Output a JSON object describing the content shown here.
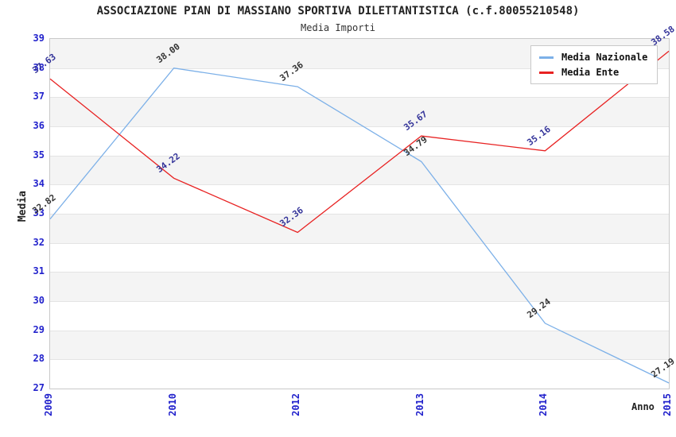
{
  "header": {
    "title": "ASSOCIAZIONE PIAN DI MASSIANO SPORTIVA DILETTANTISTICA (c.f.80055210548)",
    "subtitle": "Media Importi"
  },
  "legend": {
    "items": [
      {
        "label": "Media Nazionale",
        "color": "#7cb0e8"
      },
      {
        "label": "Media Ente",
        "color": "#e82222"
      }
    ]
  },
  "chart_data": {
    "type": "line",
    "title": "ASSOCIAZIONE PIAN DI MASSIANO SPORTIVA DILETTANTISTICA (c.f.80055210548)",
    "subtitle": "Media Importi",
    "categories": [
      2009,
      2010,
      2012,
      2013,
      2014,
      2015
    ],
    "series": [
      {
        "name": "Media Nazionale",
        "color": "#7cb0e8",
        "label_color": "#333333",
        "values": [
          32.82,
          38.0,
          37.36,
          34.79,
          29.24,
          27.19
        ]
      },
      {
        "name": "Media Ente",
        "color": "#e82222",
        "label_color": "#333399",
        "values": [
          37.63,
          34.22,
          32.36,
          35.67,
          35.16,
          38.58
        ]
      }
    ],
    "xlabel": "Anno",
    "ylabel": "Media",
    "ylim": [
      27,
      39
    ],
    "ytick_step": 1,
    "yticks": [
      39,
      38,
      37,
      36,
      35,
      34,
      33,
      32,
      31,
      30,
      29,
      28,
      27
    ],
    "grid": "horizontal-bands",
    "band_colors": [
      "#f4f4f4",
      "#ffffff"
    ],
    "axis_tick_color": "#2222cc",
    "legend_position": "top-right",
    "value_decimals": 2
  }
}
